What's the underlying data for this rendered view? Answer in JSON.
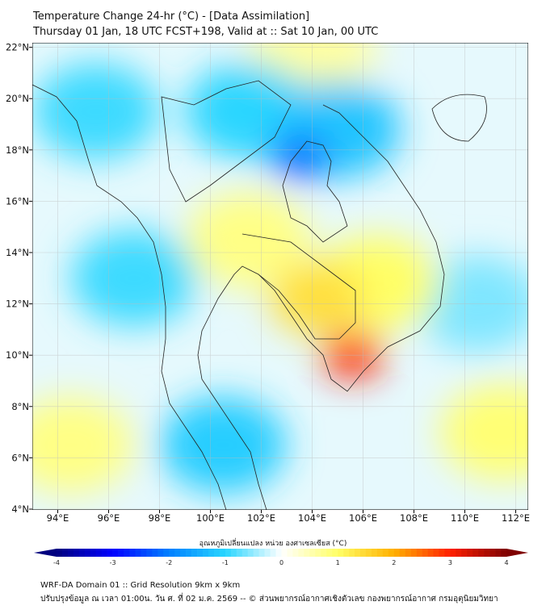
{
  "header": {
    "title": "Temperature Change 24-hr (°C) - [Data Assimilation]",
    "subtitle": "Thursday 01 Jan, 18 UTC FCST+198, Valid at :: Sat 10 Jan, 00 UTC"
  },
  "map": {
    "lon_labels": [
      "94°E",
      "96°E",
      "98°E",
      "100°E",
      "102°E",
      "104°E",
      "106°E",
      "108°E",
      "110°E",
      "112°E"
    ],
    "lat_labels": [
      "22°N",
      "20°N",
      "18°N",
      "16°N",
      "14°N",
      "12°N",
      "10°N",
      "8°N",
      "6°N",
      "4°N"
    ],
    "lon_range": [
      93,
      112.5
    ],
    "lat_range": [
      4,
      22.2
    ],
    "anomalies": [
      {
        "lon": 103.5,
        "lat": 17.7,
        "value": -2.2
      },
      {
        "lon": 101.5,
        "lat": 19.5,
        "value": -1.0
      },
      {
        "lon": 105,
        "lat": 18.8,
        "value": -1.2
      },
      {
        "lon": 95.5,
        "lat": 19.5,
        "value": -0.9
      },
      {
        "lon": 97,
        "lat": 13,
        "value": -0.9
      },
      {
        "lon": 100.5,
        "lat": 6.5,
        "value": -1.1
      },
      {
        "lon": 110.5,
        "lat": 12,
        "value": -0.6
      },
      {
        "lon": 104.2,
        "lat": 12.2,
        "value": 1.4
      },
      {
        "lon": 106.5,
        "lat": 12.8,
        "value": 1.0
      },
      {
        "lon": 101.5,
        "lat": 14.5,
        "value": 0.8
      },
      {
        "lon": 105.6,
        "lat": 10.0,
        "value": 3.0
      },
      {
        "lon": 94.5,
        "lat": 6.5,
        "value": 0.8
      },
      {
        "lon": 111.5,
        "lat": 7,
        "value": 0.9
      },
      {
        "lon": 104,
        "lat": 22,
        "value": 0.6
      }
    ]
  },
  "colorbar": {
    "label": "อุณหภูมิเปลี่ยนแปลง หน่วย องศาเซลเซียส (°C)",
    "ticks": [
      "-4",
      "-3",
      "-2",
      "-1",
      "0",
      "1",
      "2",
      "3",
      "4"
    ],
    "colors": [
      "#00007f",
      "#0000ff",
      "#0080ff",
      "#29d6ff",
      "#ffffff",
      "#ffff66",
      "#ffb000",
      "#ff2000",
      "#7f0000"
    ]
  },
  "footer": {
    "line1": "WRF-DA Domain 01 :: Grid Resolution 9km x 9km",
    "line2": "ปรับปรุงข้อมูล ณ เวลา 01:00น. วัน ศ. ที่ 02 ม.ค. 2569 -- © ส่วนพยากรณ์อากาศเชิงตัวเลข กองพยากรณ์อากาศ กรมอุตุนิยมวิทยา"
  }
}
